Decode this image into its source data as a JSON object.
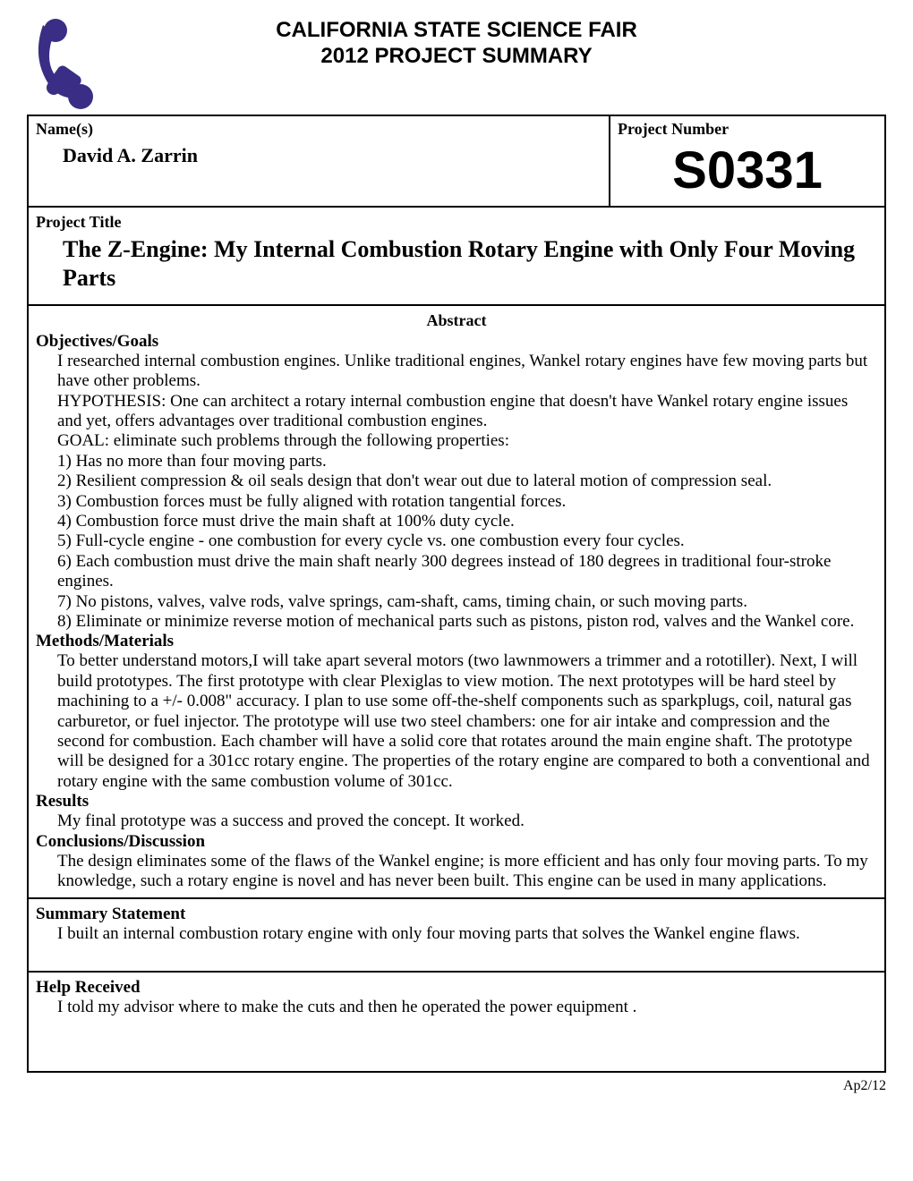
{
  "header": {
    "line1": "CALIFORNIA STATE SCIENCE FAIR",
    "line2": "2012 PROJECT SUMMARY"
  },
  "logo_color": "#3a2d85",
  "labels": {
    "names": "Name(s)",
    "project_number": "Project Number",
    "project_title": "Project Title",
    "abstract": "Abstract",
    "objectives": "Objectives/Goals",
    "methods": "Methods/Materials",
    "results": "Results",
    "conclusions": "Conclusions/Discussion",
    "summary_statement": "Summary Statement",
    "help_received": "Help Received"
  },
  "names_value": "David A. Zarrin",
  "project_number_value": "S0331",
  "project_title_value": "The Z-Engine: My Internal Combustion Rotary Engine with Only Four Moving Parts",
  "objectives_text": "I researched internal combustion engines. Unlike traditional engines, Wankel rotary engines have few moving parts but have other problems.\nHYPOTHESIS: One can architect a rotary internal combustion engine that doesn't have Wankel rotary engine issues and yet, offers advantages over traditional combustion engines.\nGOAL: eliminate such problems through the following properties:\n1) Has no more than four moving parts.\n2) Resilient compression & oil seals design that don't wear out due to lateral motion of compression seal.\n3) Combustion forces must be fully aligned with rotation tangential forces.\n4) Combustion force must drive the main shaft at 100% duty cycle.\n5) Full-cycle engine - one combustion for every cycle vs. one combustion every four cycles.\n6) Each combustion must drive the main shaft nearly 300 degrees instead of 180 degrees in traditional four-stroke engines.\n7) No pistons, valves, valve rods, valve springs, cam-shaft, cams, timing chain, or such moving parts.\n8) Eliminate or minimize reverse motion of mechanical parts such as pistons, piston rod, valves and the Wankel core.",
  "methods_text": "To better understand motors,I will take apart several motors (two lawnmowers a trimmer and a rototiller). Next, I will build prototypes. The first prototype with clear Plexiglas to view motion. The next prototypes will be hard steel by machining to a +/- 0.008\" accuracy. I plan to use some off-the-shelf components such as sparkplugs, coil, natural gas carburetor, or fuel injector. The prototype will use two steel chambers: one for air intake and compression and the second for combustion. Each chamber will have a solid core that rotates around the main engine shaft. The prototype will be designed for a 301cc rotary engine. The properties of the rotary engine are compared to both a conventional and rotary engine with the same combustion volume of 301cc.",
  "results_text": "My final prototype was a success and proved the concept. It worked.",
  "conclusions_text": "The design eliminates some of the flaws of the Wankel engine; is more efficient and has only four moving parts. To my knowledge, such a rotary engine is novel and has never been built. This engine can be used in many applications.",
  "summary_text": "I built an internal combustion rotary engine with only four moving parts that solves the Wankel engine flaws.",
  "help_text": "I told my advisor where to make the cuts and then he operated the power equipment .",
  "footer_text": "Ap2/12"
}
